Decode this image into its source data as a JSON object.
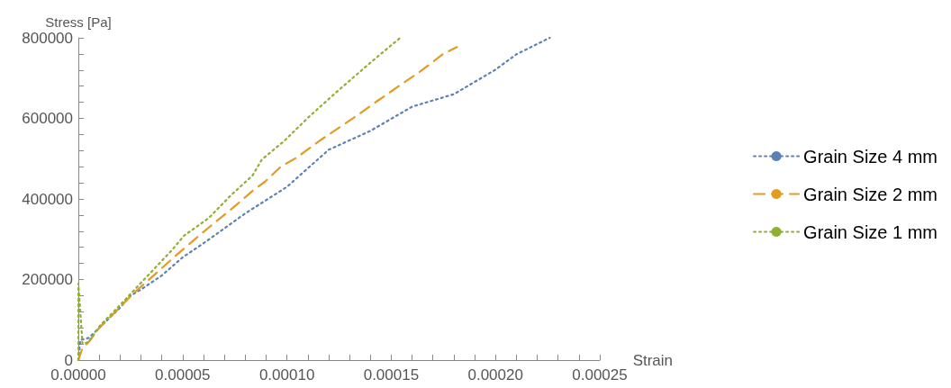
{
  "chart_data": {
    "type": "line",
    "xlabel": "Strain",
    "ylabel": "Stress [Pa]",
    "xlim": [
      0,
      0.00025
    ],
    "ylim": [
      0,
      800000
    ],
    "xticks": [
      {
        "value": 0,
        "label": "0.00000"
      },
      {
        "value": 1e-05,
        "label": null
      },
      {
        "value": 2e-05,
        "label": null
      },
      {
        "value": 3e-05,
        "label": null
      },
      {
        "value": 4e-05,
        "label": null
      },
      {
        "value": 5e-05,
        "label": "0.00005"
      },
      {
        "value": 6e-05,
        "label": null
      },
      {
        "value": 7e-05,
        "label": null
      },
      {
        "value": 8e-05,
        "label": null
      },
      {
        "value": 9e-05,
        "label": null
      },
      {
        "value": 0.0001,
        "label": "0.00010"
      },
      {
        "value": 0.00011,
        "label": null
      },
      {
        "value": 0.00012,
        "label": null
      },
      {
        "value": 0.00013,
        "label": null
      },
      {
        "value": 0.00014,
        "label": null
      },
      {
        "value": 0.00015,
        "label": "0.00015"
      },
      {
        "value": 0.00016,
        "label": null
      },
      {
        "value": 0.00017,
        "label": null
      },
      {
        "value": 0.00018,
        "label": null
      },
      {
        "value": 0.00019,
        "label": null
      },
      {
        "value": 0.0002,
        "label": "0.00020"
      },
      {
        "value": 0.00021,
        "label": null
      },
      {
        "value": 0.00022,
        "label": null
      },
      {
        "value": 0.00023,
        "label": null
      },
      {
        "value": 0.00024,
        "label": null
      },
      {
        "value": 0.00025,
        "label": "0.00025"
      }
    ],
    "yticks": [
      0,
      {
        "value": 40000,
        "label": null
      },
      {
        "value": 80000,
        "label": null
      },
      {
        "value": 120000,
        "label": null
      },
      {
        "value": 160000,
        "label": null
      },
      200000,
      {
        "value": 240000,
        "label": null
      },
      {
        "value": 280000,
        "label": null
      },
      {
        "value": 320000,
        "label": null
      },
      {
        "value": 360000,
        "label": null
      },
      400000,
      {
        "value": 440000,
        "label": null
      },
      {
        "value": 480000,
        "label": null
      },
      {
        "value": 520000,
        "label": null
      },
      {
        "value": 560000,
        "label": null
      },
      600000,
      {
        "value": 640000,
        "label": null
      },
      {
        "value": 680000,
        "label": null
      },
      {
        "value": 720000,
        "label": null
      },
      {
        "value": 760000,
        "label": null
      },
      800000
    ],
    "grid": false,
    "legend": "right",
    "marker": "none",
    "series": [
      {
        "name": "Grain Size 4 mm",
        "color": "#5e81b5",
        "line_style": "dotted",
        "x": [
          0,
          1e-06,
          5e-06,
          1e-05,
          2e-05,
          2.5e-05,
          3e-05,
          4e-05,
          5e-05,
          6e-05,
          8e-05,
          0.0001,
          0.00012,
          0.00014,
          0.00016,
          0.00018,
          0.0002,
          0.00021,
          0.000226
        ],
        "values": [
          0,
          50000,
          55000,
          80000,
          130000,
          160000,
          175000,
          210000,
          255000,
          290000,
          364000,
          430000,
          522000,
          569000,
          629000,
          660000,
          721000,
          759000,
          800000
        ]
      },
      {
        "name": "Grain Size 2 mm",
        "color": "#e19c24",
        "line_style": "dashed",
        "x": [
          0,
          2e-06,
          5e-06,
          1e-05,
          1.84e-05,
          2.68e-05,
          4.62e-05,
          6.04e-05,
          7.46e-05,
          8.35e-05,
          8.95e-05,
          9.7e-05,
          0.0001045,
          0.0001164,
          0.0001344,
          0.0001433,
          0.0001643,
          0.0001747,
          0.0001815
        ],
        "values": [
          0,
          30000,
          45000,
          80000,
          123000,
          167000,
          257000,
          320000,
          380000,
          420000,
          443000,
          480000,
          502000,
          547000,
          610000,
          643000,
          718000,
          759000,
          777000
        ]
      },
      {
        "name": "Grain Size 1 mm",
        "color": "#8fb032",
        "line_style": "dotted",
        "x": [
          0,
          0,
          2e-06,
          5e-06,
          1.03e-05,
          2.08e-05,
          2.97e-05,
          4.47e-05,
          5.07e-05,
          6.26e-05,
          7.31e-05,
          8.35e-05,
          8.8e-05,
          9.85e-05,
          0.0001104,
          0.0001239,
          0.0001404,
          0.0001543
        ],
        "values": [
          0,
          190000,
          40000,
          45000,
          85000,
          141000,
          190000,
          272000,
          309000,
          353000,
          409000,
          458000,
          498000,
          543000,
          603000,
          666000,
          740000,
          800000
        ]
      }
    ]
  }
}
